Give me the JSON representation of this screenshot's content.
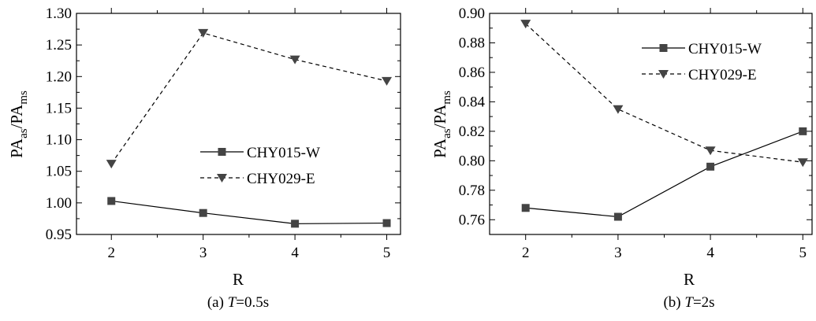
{
  "chart_data": [
    {
      "type": "line",
      "caption": {
        "prefix": "(a) ",
        "var": "T",
        "suffix": "=0.5s"
      },
      "xlabel": "R",
      "ylabel": {
        "base1": "PA",
        "sub1": "as",
        "sep": "/",
        "base2": "PA",
        "sub2": "ms"
      },
      "categories": [
        2,
        3,
        4,
        5
      ],
      "xlim": [
        1.62,
        5.15
      ],
      "ylim": [
        0.95,
        1.3
      ],
      "yticks": [
        "0.95",
        "1.00",
        "1.05",
        "1.10",
        "1.15",
        "1.20",
        "1.25",
        "1.30"
      ],
      "xticks": [
        "2",
        "3",
        "4",
        "5"
      ],
      "grid": false,
      "legend_position": "center-right",
      "series": [
        {
          "name": "CHY015-W",
          "marker": "square",
          "line": "solid",
          "values": [
            1.003,
            0.984,
            0.967,
            0.968
          ]
        },
        {
          "name": "CHY029-E",
          "marker": "triangle-down",
          "line": "dashed",
          "values": [
            1.062,
            1.269,
            1.227,
            1.193
          ]
        }
      ]
    },
    {
      "type": "line",
      "caption": {
        "prefix": "(b) ",
        "var": "T",
        "suffix": "=2s"
      },
      "xlabel": "R",
      "ylabel": {
        "base1": "PA",
        "sub1": "as",
        "sep": "/",
        "base2": "PA",
        "sub2": "ms"
      },
      "categories": [
        2,
        3,
        4,
        5
      ],
      "xlim": [
        1.61,
        5.1
      ],
      "ylim": [
        0.75,
        0.9
      ],
      "yticks": [
        "0.76",
        "0.78",
        "0.80",
        "0.82",
        "0.84",
        "0.86",
        "0.88",
        "0.90"
      ],
      "xticks": [
        "2",
        "3",
        "4",
        "5"
      ],
      "grid": false,
      "legend_position": "top-right",
      "series": [
        {
          "name": "CHY015-W",
          "marker": "square",
          "line": "solid",
          "values": [
            0.768,
            0.762,
            0.796,
            0.82
          ]
        },
        {
          "name": "CHY029-E",
          "marker": "triangle-down",
          "line": "dashed",
          "values": [
            0.893,
            0.835,
            0.807,
            0.799
          ]
        }
      ]
    }
  ]
}
